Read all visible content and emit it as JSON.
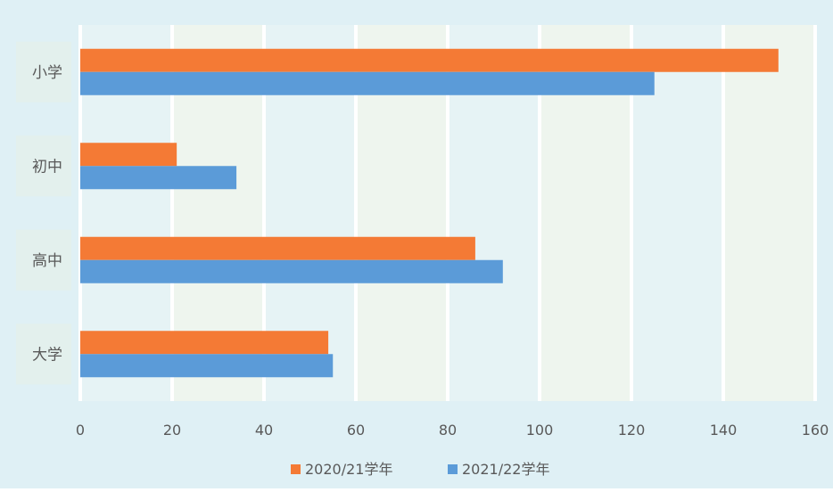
{
  "chart_data": {
    "type": "bar",
    "orientation": "horizontal",
    "categories": [
      "小学",
      "初中",
      "高中",
      "大学"
    ],
    "series": [
      {
        "name": "2020/21学年",
        "color": "#f47a35",
        "values": [
          152,
          21,
          86,
          54
        ]
      },
      {
        "name": "2021/22学年",
        "color": "#5b9bd8",
        "values": [
          125,
          34,
          92,
          55
        ]
      }
    ],
    "x_ticks": [
      0,
      20,
      40,
      60,
      80,
      100,
      120,
      140,
      160
    ],
    "xlim": [
      0,
      160
    ],
    "grid": "vertical",
    "legend_position": "bottom",
    "title": "",
    "xlabel": "",
    "ylabel": ""
  }
}
